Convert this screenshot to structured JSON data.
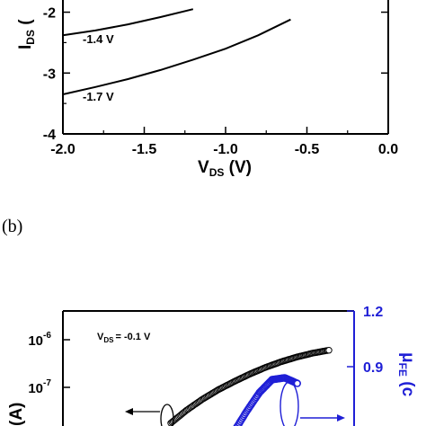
{
  "panel_b_label": "(b)",
  "chart_data": [
    {
      "type": "line",
      "xlabel_main": "V",
      "xlabel_sub": "DS",
      "xlabel_unit": " (V)",
      "ylabel_main": "I",
      "ylabel_sub": "DS",
      "ylabel_unit": " (",
      "xlim": [
        -2.0,
        0.0
      ],
      "ylim": [
        -4,
        -1.8
      ],
      "x_ticks": [
        "-2.0",
        "-1.5",
        "-1.0",
        "-0.5",
        "0.0"
      ],
      "x_tick_values": [
        -2.0,
        -1.5,
        -1.0,
        -0.5,
        0.0
      ],
      "y_ticks": [
        "-2",
        "-3",
        "-4"
      ],
      "y_tick_values": [
        -2,
        -3,
        -4
      ],
      "series": [
        {
          "name": "-1.4 V",
          "x": [
            -2.0,
            -1.8,
            -1.6,
            -1.4,
            -1.2
          ],
          "y": [
            -2.38,
            -2.3,
            -2.2,
            -2.08,
            -1.95
          ]
        },
        {
          "name": "-1.7 V",
          "x": [
            -2.0,
            -1.8,
            -1.6,
            -1.4,
            -1.2,
            -1.0,
            -0.8,
            -0.6
          ],
          "y": [
            -3.35,
            -3.23,
            -3.1,
            -2.95,
            -2.78,
            -2.6,
            -2.38,
            -2.12
          ]
        }
      ]
    },
    {
      "type": "scatter",
      "annotation_main": "V",
      "annotation_sub": "DS",
      "annotation_rest": "= -0.1 V",
      "ylabel_left_partial": "(A)",
      "ylabel_right_main": "μ",
      "ylabel_right_sub": "FE",
      "ylabel_right_partial": " (c",
      "y_left_ticks": [
        {
          "base": "10",
          "exp": "-6",
          "value": -6
        },
        {
          "base": "10",
          "exp": "-7",
          "value": -7
        }
      ],
      "y_right_ticks": [
        "1.2",
        "0.9"
      ],
      "y_right_tick_values": [
        1.2,
        0.9
      ],
      "series_colors": {
        "current": "#000000",
        "mobility": "#1f1fd6"
      },
      "series": [
        {
          "axis": "left",
          "x": [
            0.0,
            0.1,
            0.2,
            0.3,
            0.4,
            0.5,
            0.6,
            0.7,
            0.8,
            0.9,
            1.0
          ],
          "y": [
            -7.75,
            -7.48,
            -7.25,
            -7.05,
            -6.88,
            -6.72,
            -6.58,
            -6.46,
            -6.36,
            -6.28,
            -6.22
          ]
        },
        {
          "axis": "right",
          "x": [
            0.4,
            0.48,
            0.56,
            0.64,
            0.72,
            0.8
          ],
          "y": [
            0.55,
            0.66,
            0.76,
            0.83,
            0.84,
            0.81
          ]
        }
      ]
    }
  ]
}
